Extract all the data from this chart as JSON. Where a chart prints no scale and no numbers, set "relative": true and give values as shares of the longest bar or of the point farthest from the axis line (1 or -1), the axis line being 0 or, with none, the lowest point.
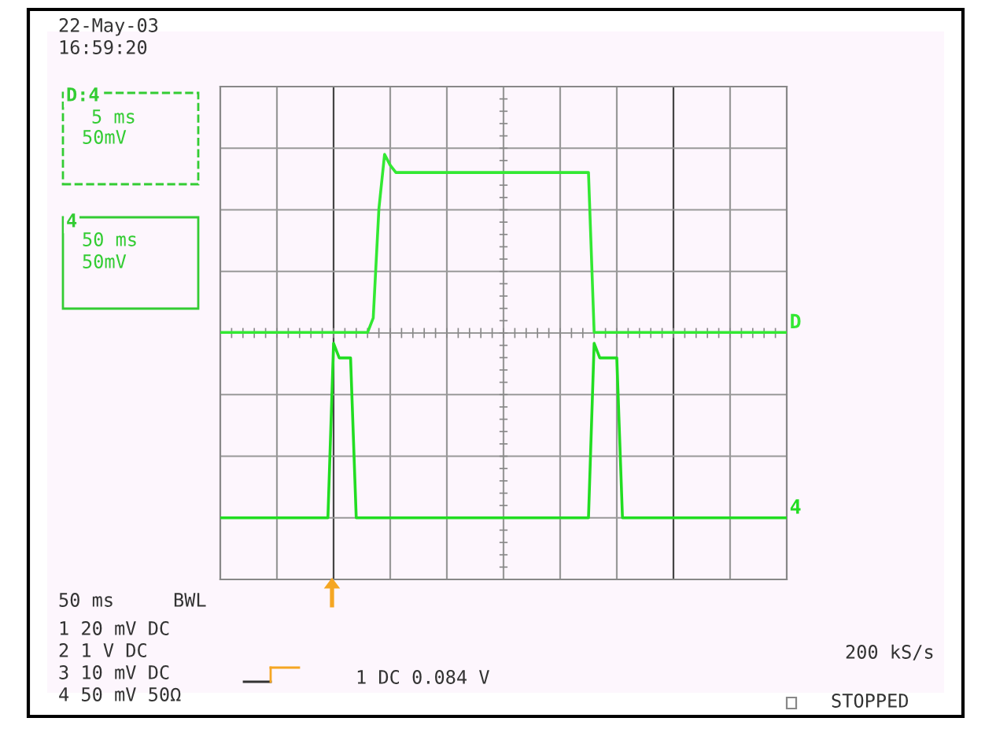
{
  "chart_data": {
    "type": "line",
    "relative": true,
    "grid": true,
    "categories": [
      null,
      null,
      null,
      null,
      null,
      null,
      null,
      null,
      null,
      null,
      null,
      null,
      null,
      null,
      null,
      null,
      null,
      null,
      null,
      null,
      null,
      null,
      null,
      null,
      null,
      null,
      null,
      null,
      null,
      null,
      null,
      null,
      null,
      null,
      null,
      null,
      null,
      null,
      null,
      null,
      null,
      null,
      null,
      null,
      null,
      null,
      null,
      null,
      null,
      null,
      null,
      null,
      null,
      null,
      null,
      null,
      null,
      null,
      null,
      null,
      null,
      null,
      null,
      null,
      null,
      null,
      null,
      null,
      null,
      null,
      null,
      null,
      null,
      null,
      null,
      null,
      null,
      null,
      null,
      null,
      null,
      null,
      null,
      null,
      null,
      null,
      null,
      null,
      null,
      null,
      null,
      null,
      null,
      null,
      null,
      null,
      null,
      null,
      null,
      null,
      null
    ],
    "series": [
      {
        "name": "D",
        "color": "#33e833",
        "values": [
          0.51,
          0.51,
          0.51,
          0.51,
          0.51,
          0.51,
          0.51,
          0.51,
          0.51,
          0.51,
          0.51,
          0.51,
          0.51,
          0.51,
          0.51,
          0.51,
          0.51,
          0.51,
          0.51,
          0.51,
          0.51,
          0.51,
          0.51,
          0.51,
          0.51,
          0.51,
          0.51,
          0.55,
          0.85,
          1.0,
          0.97,
          0.95,
          0.95,
          0.95,
          0.95,
          0.95,
          0.95,
          0.95,
          0.95,
          0.95,
          0.95,
          0.95,
          0.95,
          0.95,
          0.95,
          0.95,
          0.95,
          0.95,
          0.95,
          0.95,
          0.95,
          0.95,
          0.95,
          0.95,
          0.95,
          0.95,
          0.95,
          0.95,
          0.95,
          0.95,
          0.95,
          0.95,
          0.95,
          0.95,
          0.95,
          0.95,
          0.51,
          0.51,
          0.51,
          0.51,
          0.51,
          0.51,
          0.51,
          0.51,
          0.51,
          0.51,
          0.51,
          0.51,
          0.51,
          0.51,
          0.51,
          0.51,
          0.51,
          0.51,
          0.51,
          0.51,
          0.51,
          0.51,
          0.51,
          0.51,
          0.51,
          0.51,
          0.51,
          0.51,
          0.51,
          0.51,
          0.51,
          0.51,
          0.51,
          0.51,
          0.51
        ]
      },
      {
        "name": "4",
        "color": "#22dd22",
        "values": [
          0,
          0,
          0,
          0,
          0,
          0,
          0,
          0,
          0,
          0,
          0,
          0,
          0,
          0,
          0,
          0,
          0,
          0,
          0,
          0,
          0.48,
          0.44,
          0.44,
          0.44,
          0,
          0,
          0,
          0,
          0,
          0,
          0,
          0,
          0,
          0,
          0,
          0,
          0,
          0,
          0,
          0,
          0,
          0,
          0,
          0,
          0,
          0,
          0,
          0,
          0,
          0,
          0,
          0,
          0,
          0,
          0,
          0,
          0,
          0,
          0,
          0,
          0,
          0,
          0,
          0,
          0,
          0,
          0.48,
          0.44,
          0.44,
          0.44,
          0.44,
          0,
          0,
          0,
          0,
          0,
          0,
          0,
          0,
          0,
          0,
          0,
          0,
          0,
          0,
          0,
          0,
          0,
          0,
          0,
          0,
          0,
          0,
          0,
          0,
          0,
          0,
          0,
          0,
          0,
          0
        ]
      }
    ],
    "annotations": [
      "22-May-03",
      "16:59:20",
      "D:4",
      "5 ms",
      "50mV",
      "4",
      "50 ms",
      "50mV",
      "50 ms",
      "BWL",
      "1 20 mV DC",
      "2 1 V DC",
      "3 10 mV DC",
      "4 50 mV 50Ω",
      "1 DC 0.084 V",
      "200 kS/s",
      "STOPPED"
    ]
  }
}
